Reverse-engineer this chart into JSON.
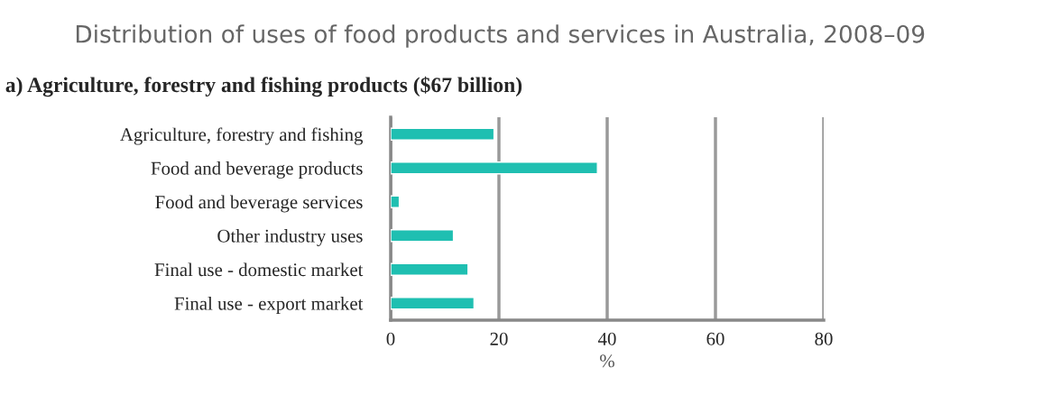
{
  "chart_data": {
    "type": "bar",
    "orientation": "horizontal",
    "title": "Distribution of uses of food products and services in Australia, 2008–09",
    "subtitle": "a) Agriculture, forestry and fishing products ($67 billion)",
    "xlabel": "%",
    "categories": [
      "Agriculture, forestry and fishing",
      "Food and beverage products",
      "Food and beverage services",
      "Other industry uses",
      "Final use - domestic market",
      "Final use - export market"
    ],
    "values": [
      19.1,
      38.2,
      1.6,
      11.6,
      14.3,
      15.4
    ],
    "color": "#1fbfb1",
    "xlim": [
      0,
      80
    ],
    "xticks": [
      0,
      20,
      40,
      60,
      80
    ],
    "grid": "x"
  }
}
